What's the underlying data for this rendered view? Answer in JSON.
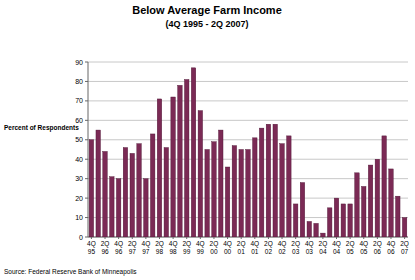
{
  "chart_data": {
    "type": "bar",
    "title": "Below Average Farm Income",
    "subtitle": "(4Q 1995 - 2Q 2007)",
    "y_label": "Percent of Respondents",
    "source": "Source: Federal Reserve Bank of Minneapolis",
    "categories": [
      "4Q 95",
      null,
      "2Q 96",
      null,
      "4Q 96",
      null,
      "2Q 97",
      null,
      "4Q 97",
      null,
      "2Q 98",
      null,
      "4Q 98",
      null,
      "2Q 99",
      null,
      "4Q 99",
      null,
      "2Q 00",
      null,
      "4Q 00",
      null,
      "2Q 01",
      null,
      "4Q 01",
      null,
      "2Q 02",
      null,
      "4Q 02",
      null,
      "2Q 03",
      null,
      "4Q 03",
      null,
      "2Q 04",
      null,
      "4Q 04",
      null,
      "2Q 05",
      null,
      "4Q 05",
      null,
      "2Q 06",
      null,
      "4Q 06",
      null,
      "2Q 07"
    ],
    "values": [
      50,
      55,
      44,
      31,
      30,
      46,
      43,
      48,
      30,
      53,
      71,
      46,
      72,
      78,
      81,
      87,
      65,
      45,
      49,
      55,
      36,
      47,
      45,
      45,
      51,
      56,
      58,
      58,
      48,
      52,
      17,
      28,
      8,
      7,
      2,
      15,
      20,
      17,
      17,
      33,
      26,
      37,
      40,
      52,
      35,
      21,
      10
    ],
    "color": "#7b2a55",
    "ylim": [
      0,
      90
    ],
    "yticks": [
      0,
      10,
      20,
      30,
      40,
      50,
      60,
      70,
      80,
      90
    ],
    "grid": true
  }
}
